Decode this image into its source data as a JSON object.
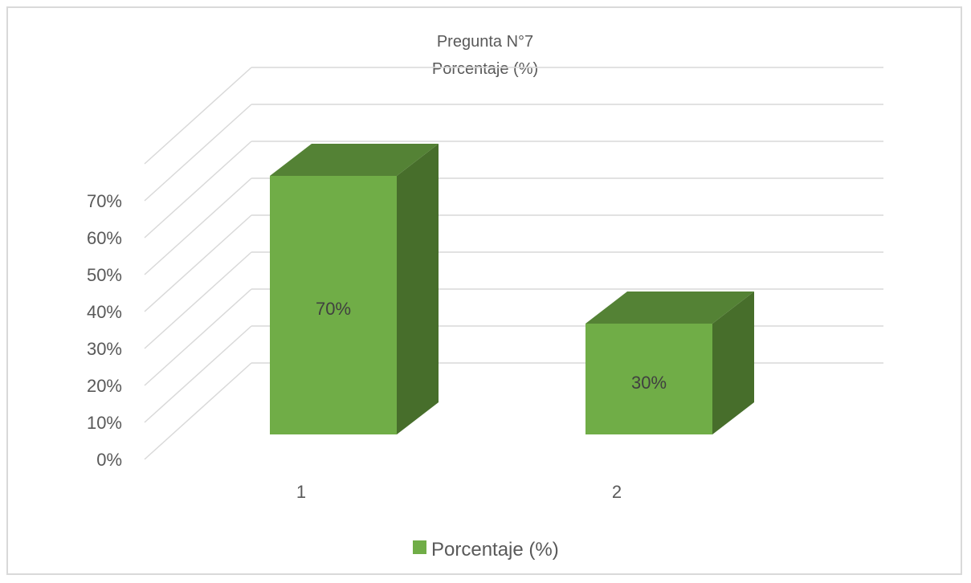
{
  "chart_data": {
    "type": "bar",
    "title": "Pregunta N°7",
    "subtitle": "Porcentaje (%)",
    "categories": [
      "1",
      "2"
    ],
    "series": [
      {
        "name": "Porcentaje (%)",
        "values": [
          70,
          30
        ]
      }
    ],
    "data_labels": [
      "70%",
      "30%"
    ],
    "y_ticks": [
      "0%",
      "10%",
      "20%",
      "30%",
      "40%",
      "50%",
      "60%",
      "70%"
    ],
    "ylim": [
      0,
      70
    ],
    "grid": true,
    "legend_position": "bottom",
    "three_d": true,
    "colors": {
      "front": "#70ad47",
      "top": "#548235",
      "side": "#476e2b",
      "grid": "#d9d9d9"
    }
  }
}
